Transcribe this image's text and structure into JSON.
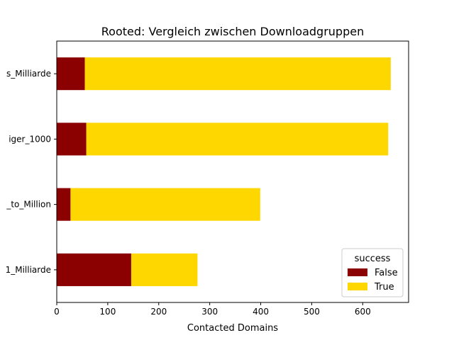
{
  "chart_data": {
    "type": "bar",
    "orientation": "horizontal",
    "stacked": true,
    "title": "Rooted: Vergleich zwischen Downloadgruppen",
    "xlabel": "Contacted Domains",
    "ylabel": "",
    "xlim": [
      0,
      690
    ],
    "xticks": [
      0,
      100,
      200,
      300,
      400,
      500,
      600
    ],
    "categories": [
      "s_Milliarde",
      "iger_1000",
      "_to_Million",
      "1_Milliarde"
    ],
    "series": [
      {
        "name": "False",
        "color": "#8b0000",
        "values": [
          55,
          58,
          27,
          146
        ]
      },
      {
        "name": "True",
        "color": "#ffd700",
        "values": [
          600,
          592,
          372,
          130
        ]
      }
    ],
    "legend": {
      "title": "success",
      "placement": "lower-right"
    },
    "grid": false
  }
}
